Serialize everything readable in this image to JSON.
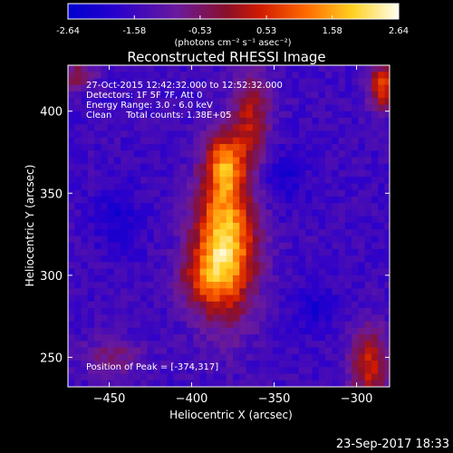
{
  "colorbar": {
    "ticks": [
      "-2.64",
      "-1.58",
      "-0.53",
      "0.53",
      "1.58",
      "2.64"
    ],
    "tick_values": [
      -2.64,
      -1.58,
      -0.53,
      0.53,
      1.58,
      2.64
    ],
    "range": [
      -2.64,
      2.64
    ],
    "units": "(photons cm⁻² s⁻¹ asec⁻²)"
  },
  "footer": {
    "timestamp": "23-Sep-2017 18:33"
  },
  "chart_data": {
    "type": "heatmap",
    "title": "Reconstructed RHESSI Image",
    "xlabel": "Heliocentric X (arcsec)",
    "ylabel": "Heliocentric Y (arcsec)",
    "xlim": [
      -475,
      -280
    ],
    "ylim": [
      232,
      428
    ],
    "xticks": [
      -450,
      -400,
      -350,
      -300
    ],
    "xtick_labels": [
      "−450",
      "−400",
      "−350",
      "−300"
    ],
    "yticks": [
      250,
      300,
      350,
      400
    ],
    "ytick_labels": [
      "250",
      "300",
      "350",
      "400"
    ],
    "zlim": [
      -2.64,
      2.64
    ],
    "colormap": "blue-purple-red-orange-yellow-white",
    "annotations": [
      "27-Oct-2015 12:42:32.000 to 12:52:32.000",
      "Detectors: 1F 5F 7F, Att 0",
      "Energy Range: 3.0 - 6.0 keV",
      "Clean     Total counts: 1.38E+05"
    ],
    "peak_label": "Position of Peak = [-374,317]",
    "peak": {
      "x": -374,
      "y": 317,
      "value": 2.64
    },
    "sources": [
      {
        "x": -380,
        "y": 318,
        "sx": 13,
        "sy": 30,
        "amp": 3.7
      },
      {
        "x": -380,
        "y": 368,
        "sx": 8,
        "sy": 14,
        "amp": 2.2
      },
      {
        "x": -364,
        "y": 395,
        "sx": 8,
        "sy": 20,
        "amp": 1.7
      },
      {
        "x": -395,
        "y": 298,
        "sx": 10,
        "sy": 12,
        "amp": 1.0
      },
      {
        "x": -284,
        "y": 415,
        "sx": 6,
        "sy": 10,
        "amp": 2.3
      },
      {
        "x": -292,
        "y": 246,
        "sx": 8,
        "sy": 16,
        "amp": 2.0
      },
      {
        "x": -470,
        "y": 422,
        "sx": 8,
        "sy": 6,
        "amp": 1.3
      },
      {
        "x": -448,
        "y": 250,
        "sx": 14,
        "sy": 8,
        "amp": 0.9
      }
    ],
    "background": -1.55,
    "cell_arcsec": 4
  }
}
